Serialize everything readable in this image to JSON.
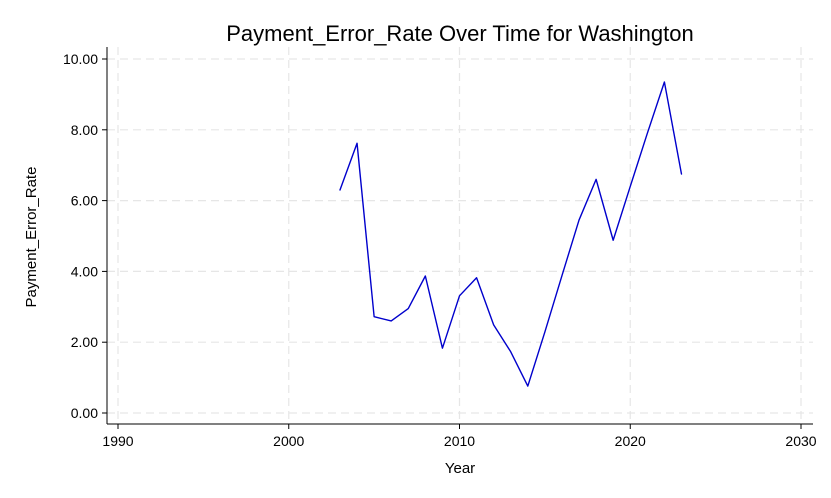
{
  "chart_data": {
    "type": "line",
    "title": "Payment_Error_Rate Over Time for Washington",
    "xlabel": "Year",
    "ylabel": "Payment_Error_Rate",
    "xlim": [
      1990,
      2030
    ],
    "ylim": [
      0,
      10
    ],
    "xticks": [
      1990,
      2000,
      2010,
      2020,
      2030
    ],
    "xtick_labels": [
      "1990",
      "2000",
      "2010",
      "2020",
      "2030"
    ],
    "yticks": [
      0,
      2,
      4,
      6,
      8,
      10
    ],
    "ytick_labels": [
      "0.00",
      "2.00",
      "4.00",
      "6.00",
      "8.00",
      "10.00"
    ],
    "grid": true,
    "line_color": "#0000cc",
    "grid_color": "#e6e6e6",
    "series": [
      {
        "x": [
          2003,
          2004,
          2005,
          2006,
          2007,
          2008,
          2009,
          2010,
          2011,
          2012,
          2013,
          2014,
          2015,
          2016,
          2017,
          2018,
          2019,
          2020,
          2021,
          2022,
          2023
        ],
        "values": [
          6.3,
          7.62,
          2.72,
          2.6,
          2.95,
          3.87,
          1.83,
          3.31,
          3.82,
          2.49,
          1.73,
          0.76,
          2.29,
          3.88,
          5.45,
          6.6,
          4.88,
          6.4,
          7.9,
          9.35,
          6.75
        ]
      }
    ]
  }
}
